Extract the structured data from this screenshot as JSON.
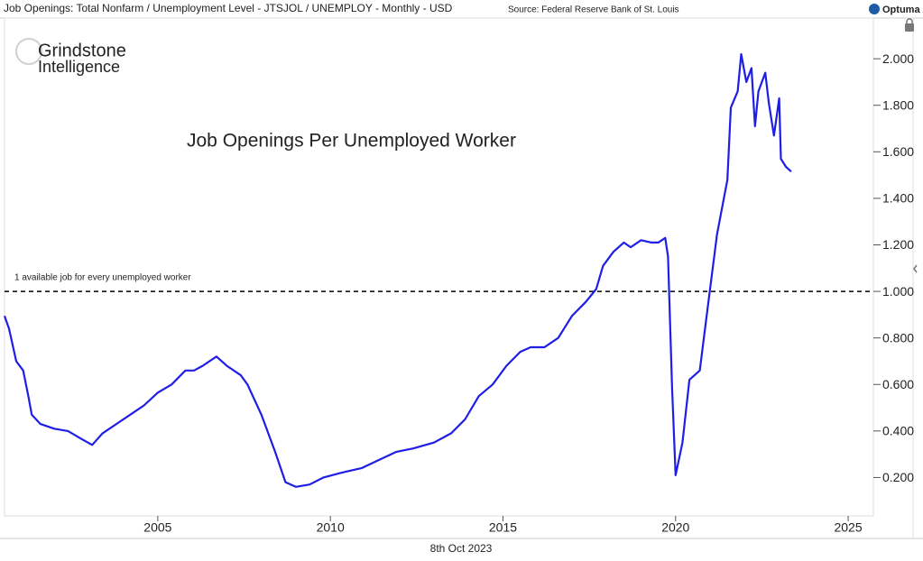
{
  "chart_data": {
    "type": "line",
    "header": "Job Openings: Total Nonfarm / Unemployment Level - JTSJOL / UNEMPLOY - Monthly - USD",
    "source": "Source: Federal Reserve Bank of St. Louis",
    "logo": "Optuma",
    "watermark": [
      "Grindstone",
      "Intelligence"
    ],
    "title": "Job Openings Per Unemployed Worker",
    "date": "8th Oct 2023",
    "reference_line": {
      "value": 1,
      "label": "1 available job for every unemployed worker"
    },
    "x": [
      2000.56,
      2000.69,
      2000.9,
      2001.1,
      2001.25,
      2001.35,
      2001.6,
      2002.0,
      2002.4,
      2002.8,
      2003.1,
      2003.4,
      2003.8,
      2004.2,
      2004.6,
      2005.0,
      2005.4,
      2005.8,
      2006.05,
      2006.3,
      2006.7,
      2007.0,
      2007.4,
      2007.6,
      2008.0,
      2008.4,
      2008.7,
      2009.0,
      2009.4,
      2009.8,
      2010.3,
      2010.9,
      2011.4,
      2011.9,
      2012.4,
      2013.0,
      2013.5,
      2013.9,
      2014.3,
      2014.7,
      2015.1,
      2015.5,
      2015.8,
      2016.2,
      2016.6,
      2017.0,
      2017.4,
      2017.7,
      2017.9,
      2018.2,
      2018.5,
      2018.7,
      2019.0,
      2019.3,
      2019.5,
      2019.7,
      2019.78,
      2019.9,
      2020.0,
      2020.2,
      2020.4,
      2020.7,
      2020.9,
      2021.2,
      2021.5,
      2021.6,
      2021.8,
      2021.9,
      2022.05,
      2022.2,
      2022.3,
      2022.4,
      2022.6,
      2022.7,
      2022.85,
      2023.0,
      2023.05,
      2023.2,
      2023.35
    ],
    "series": [
      {
        "name": "Job Openings Per Unemployed Worker",
        "color": "#1e1ee6",
        "values": [
          0.895,
          0.84,
          0.7,
          0.66,
          0.55,
          0.47,
          0.43,
          0.41,
          0.4,
          0.365,
          0.34,
          0.39,
          0.43,
          0.47,
          0.51,
          0.565,
          0.6,
          0.66,
          0.66,
          0.68,
          0.72,
          0.68,
          0.64,
          0.6,
          0.47,
          0.31,
          0.18,
          0.16,
          0.17,
          0.2,
          0.22,
          0.24,
          0.275,
          0.31,
          0.325,
          0.35,
          0.39,
          0.45,
          0.55,
          0.6,
          0.68,
          0.74,
          0.76,
          0.76,
          0.8,
          0.895,
          0.955,
          1.01,
          1.11,
          1.17,
          1.21,
          1.19,
          1.22,
          1.21,
          1.21,
          1.23,
          1.15,
          0.585,
          0.21,
          0.35,
          0.62,
          0.66,
          0.895,
          1.245,
          1.48,
          1.79,
          1.86,
          2.02,
          1.9,
          1.96,
          1.71,
          1.86,
          1.94,
          1.81,
          1.67,
          1.83,
          1.57,
          1.535,
          1.515
        ]
      }
    ],
    "xlim": [
      2000.56,
      2025.73
    ],
    "xticks": [
      2005,
      2010,
      2015,
      2020,
      2025
    ],
    "ylim": [
      0.035,
      2.175
    ],
    "yticks": [
      {
        "value": 0.2,
        "label": "0.200"
      },
      {
        "value": 0.4,
        "label": "0.400"
      },
      {
        "value": 0.6,
        "label": "0.600"
      },
      {
        "value": 0.8,
        "label": "0.800"
      },
      {
        "value": 1,
        "label": "1.000"
      },
      {
        "value": 1.2,
        "label": "1.200"
      },
      {
        "value": 1.4,
        "label": "1.400"
      },
      {
        "value": 1.6,
        "label": "1.600"
      },
      {
        "value": 1.8,
        "label": "1.800"
      },
      {
        "value": 2,
        "label": "2.000"
      }
    ]
  }
}
